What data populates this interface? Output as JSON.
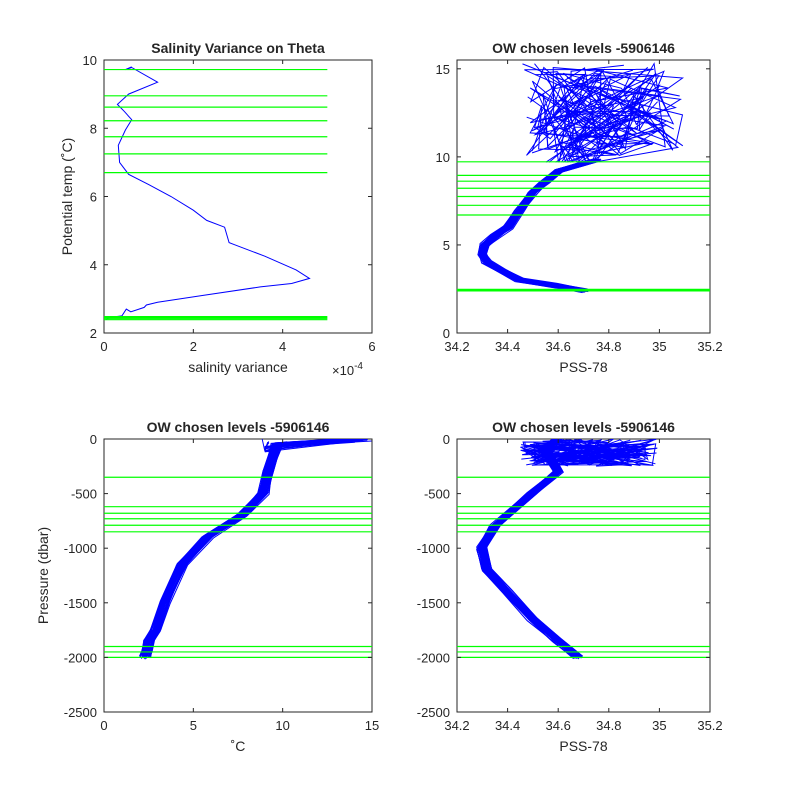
{
  "colors": {
    "profiles": "#0000ff",
    "levels": "#00ff00",
    "axes": "#262626"
  },
  "chart_data": [
    {
      "type": "line",
      "title": "Salinity Variance on Theta",
      "xlabel": "salinity variance",
      "x_exponent": "×10",
      "x_exponent_power": "-4",
      "ylabel": "Potential temp (˚C)",
      "xlim": [
        0,
        6
      ],
      "ylim": [
        2,
        10
      ],
      "xticks": [
        "0",
        "2",
        "4",
        "6"
      ],
      "yticks": [
        "2",
        "4",
        "6",
        "8",
        "10"
      ],
      "series": [
        {
          "x": [
            0.62,
            0.48,
            0.62,
            1.2,
            0.55,
            0.3,
            0.45,
            0.62,
            0.48,
            0.32,
            0.35,
            0.55,
            1.0,
            1.5,
            2.0,
            2.3,
            2.7,
            2.8,
            2.9,
            3.6,
            4.3,
            4.6,
            4.2,
            3.5,
            2.2,
            1.2,
            0.95,
            0.9,
            0.6,
            0.5,
            0.4,
            0.1,
            0.05
          ],
          "y": [
            9.8,
            9.72,
            9.78,
            9.35,
            9.0,
            8.7,
            8.5,
            8.25,
            7.95,
            7.5,
            7.0,
            6.65,
            6.35,
            6.0,
            5.6,
            5.3,
            5.1,
            4.65,
            4.6,
            4.25,
            3.85,
            3.6,
            3.45,
            3.35,
            3.1,
            2.9,
            2.82,
            2.75,
            2.62,
            2.7,
            2.5,
            2.45,
            2.4
          ]
        }
      ],
      "levels": [
        9.72,
        8.95,
        8.62,
        8.22,
        7.75,
        7.25,
        6.7,
        2.48,
        2.45,
        2.42,
        2.39
      ],
      "level_range": [
        0,
        5
      ]
    },
    {
      "type": "line",
      "title": "OW chosen levels -5906146",
      "xlabel": "PSS-78",
      "ylabel": "",
      "xlim": [
        34.2,
        35.2
      ],
      "ylim": [
        0,
        15.5
      ],
      "xticks": [
        "34.2",
        "34.4",
        "34.6",
        "34.8",
        "35",
        "35.2"
      ],
      "yticks": [
        "0",
        "5",
        "10",
        "15"
      ],
      "series": [
        {
          "x": [
            34.7,
            34.58,
            34.45,
            34.38,
            34.32,
            34.3,
            34.31,
            34.35,
            34.4,
            34.45,
            34.5,
            34.55,
            34.6,
            34.7,
            34.75
          ],
          "y": [
            2.4,
            2.7,
            3.0,
            3.5,
            4.0,
            4.5,
            5.0,
            5.5,
            6.0,
            7.0,
            8.0,
            8.6,
            9.2,
            9.6,
            9.8
          ]
        }
      ],
      "levels": [
        9.72,
        8.95,
        8.62,
        8.22,
        7.75,
        7.25,
        6.7,
        2.48,
        2.45,
        2.42,
        2.39
      ],
      "level_range": [
        34.2,
        35.2
      ]
    },
    {
      "type": "line",
      "title": "OW chosen levels -5906146",
      "xlabel": "˚C",
      "ylabel": "Pressure (dbar)",
      "xlim": [
        0,
        15.5
      ],
      "ylim": [
        -2500,
        0
      ],
      "xticks": [
        "0",
        "5",
        "10",
        "15"
      ],
      "yticks": [
        "0",
        "-500",
        "-1000",
        "-1500",
        "-2000",
        "-2500"
      ],
      "series": [
        {
          "x": [
            15,
            10,
            9.5,
            9.2,
            8.0,
            6.0,
            4.5,
            3.5,
            3.0,
            2.6,
            2.45,
            2.4
          ],
          "y": [
            0,
            -50,
            -300,
            -500,
            -700,
            -900,
            -1150,
            -1500,
            -1750,
            -1850,
            -1950,
            -2000
          ]
        }
      ],
      "levels": [
        -350,
        -620,
        -680,
        -730,
        -790,
        -850,
        -1900,
        -1950,
        -2000
      ],
      "level_range": [
        0,
        15.5
      ]
    },
    {
      "type": "line",
      "title": "OW chosen levels -5906146",
      "xlabel": "PSS-78",
      "ylabel": "",
      "xlim": [
        34.2,
        35.2
      ],
      "ylim": [
        -2500,
        0
      ],
      "xticks": [
        "34.2",
        "34.4",
        "34.6",
        "34.8",
        "35",
        "35.2"
      ],
      "yticks": [
        "0",
        "-500",
        "-1000",
        "-1500",
        "-2000",
        "-2500"
      ],
      "series": [
        {
          "x": [
            34.6,
            34.55,
            34.6,
            34.5,
            34.35,
            34.3,
            34.32,
            34.4,
            34.5,
            34.6,
            34.68
          ],
          "y": [
            0,
            -100,
            -300,
            -500,
            -800,
            -1000,
            -1200,
            -1400,
            -1650,
            -1850,
            -2000
          ]
        }
      ],
      "levels": [
        -350,
        -620,
        -680,
        -730,
        -790,
        -850,
        -1900,
        -1950,
        -2000
      ],
      "level_range": [
        34.2,
        35.2
      ]
    }
  ]
}
